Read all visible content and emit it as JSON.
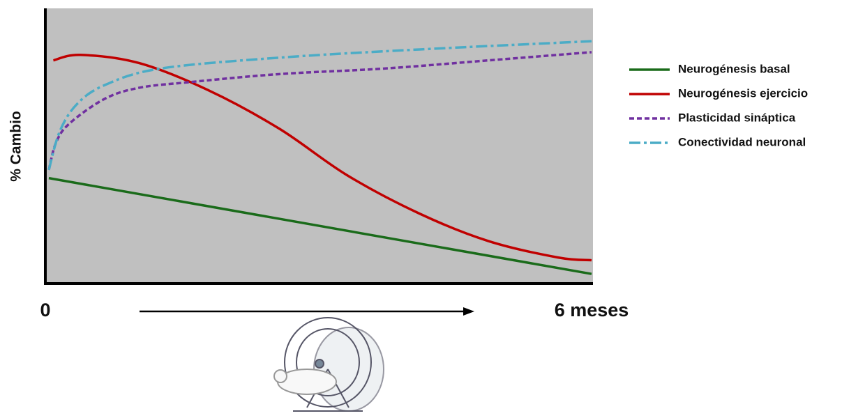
{
  "chart_data": {
    "type": "line",
    "y_label": "% Cambio",
    "xlim": [
      0,
      6
    ],
    "ylim": [
      0,
      100
    ],
    "xticks": [
      0,
      {
        "value": 6,
        "label": "6 meses"
      }
    ],
    "legend": "right",
    "series": [
      {
        "name": "Neurogénesis basal",
        "color": "#1a6b1a",
        "style": "solid",
        "x": [
          0,
          6
        ],
        "values": [
          38,
          3
        ]
      },
      {
        "name": "Neurogénesis ejercicio",
        "color": "#c00000",
        "style": "solid",
        "x": [
          0.05,
          0.35,
          1,
          1.77,
          2.55,
          3.3,
          4.1,
          4.86,
          5.63,
          6
        ],
        "values": [
          81,
          83,
          80,
          70,
          56,
          39,
          25,
          15,
          9,
          8
        ]
      },
      {
        "name": "Plasticidad sináptica",
        "color": "#7030a0",
        "style": "dashed",
        "x": [
          0,
          0.08,
          0.23,
          0.62,
          1,
          1.54,
          2.55,
          3.7,
          4.86,
          6
        ],
        "values": [
          41,
          51,
          58,
          67,
          71,
          73,
          76,
          78,
          81,
          84
        ]
      },
      {
        "name": "Conectividad neuronal",
        "color": "#4bacc6",
        "style": "dashdot",
        "x": [
          0,
          0.12,
          0.31,
          0.62,
          1.23,
          2.55,
          4.1,
          6
        ],
        "values": [
          41,
          55,
          65,
          72,
          78,
          82,
          85,
          88
        ]
      }
    ]
  }
}
